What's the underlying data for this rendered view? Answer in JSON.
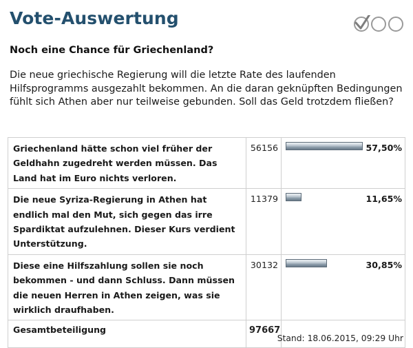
{
  "header": {
    "title": "Vote-Auswertung"
  },
  "logo": {
    "icons": [
      "checked-circle",
      "empty-circle",
      "empty-circle"
    ]
  },
  "question": "Noch eine Chance für Griechenland?",
  "intro": "Die neue griechische Regierung will die letzte Rate des laufenden Hilfsprogramms ausgezahlt bekommen. An die daran geknüpften Bedingungen fühlt sich Athen aber nur teilweise gebunden. Soll das Geld trotzdem fließen?",
  "results": [
    {
      "text": "Griechenland hätte schon viel früher der Geldhahn zugedreht werden müssen. Das Land hat im Euro nichts verloren.",
      "count": "56156",
      "percent": "57,50%",
      "fraction": 0.575
    },
    {
      "text": "Die neue Syriza-Regierung in Athen hat endlich mal den Mut, sich gegen das irre Spardiktat aufzulehnen. Dieser Kurs verdient Unterstützung.",
      "count": "11379",
      "percent": "11,65%",
      "fraction": 0.1165
    },
    {
      "text": "Diese eine Hilfszahlung sollen sie noch bekommen - und dann Schluss. Dann müssen die neuen Herren in Athen zeigen, was sie wirklich draufhaben.",
      "count": "30132",
      "percent": "30,85%",
      "fraction": 0.3085
    }
  ],
  "total": {
    "label": "Gesamtbeteiligung",
    "count": "97667"
  },
  "stand": "Stand: 18.06.2015, 09:29 Uhr",
  "colors": {
    "title": "#24506e",
    "border": "#cfcfcf",
    "bar": "#8697a5"
  }
}
